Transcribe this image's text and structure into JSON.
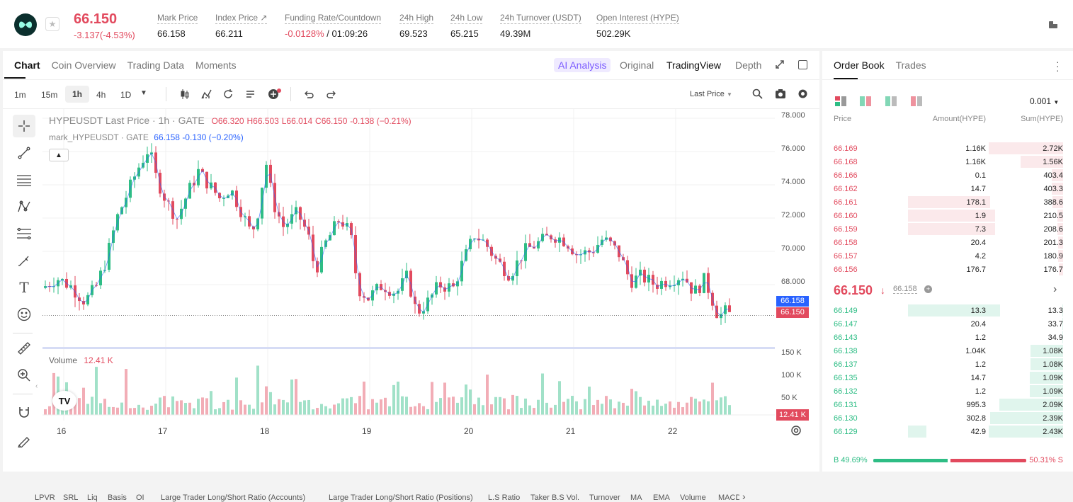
{
  "ticker": {
    "price": "66.150",
    "change": "-3.137(-4.53%)",
    "stats": [
      {
        "label": "Mark Price",
        "value": "66.158"
      },
      {
        "label": "Index Price ↗",
        "value": "66.211"
      },
      {
        "label": "Funding Rate/Countdown",
        "value_neg": "-0.0128%",
        "value": " / 01:09:26"
      },
      {
        "label": "24h High",
        "value": "69.523"
      },
      {
        "label": "24h Low",
        "value": "65.215"
      },
      {
        "label": "24h Turnover (USDT)",
        "value": "49.39M"
      },
      {
        "label": "Open Interest (HYPE)",
        "value": "502.29K"
      }
    ]
  },
  "chart_tabs": [
    "Chart",
    "Coin Overview",
    "Trading Data",
    "Moments"
  ],
  "view_tabs": {
    "analysis": "AI Analysis",
    "original": "Original",
    "tradingview": "TradingView",
    "depth": "Depth"
  },
  "intervals": [
    "1m",
    "15m",
    "1h",
    "4h",
    "1D"
  ],
  "selected_interval": "1h",
  "price_type": "Last Price",
  "legend": {
    "line1_name": "HYPEUSDT Last Price · 1h · GATE",
    "o": "O66.320",
    "h": "H66.503",
    "l": "L66.014",
    "c": "C66.150",
    "chg": "-0.138 (−0.21%)",
    "line2_name": "mark_HYPEUSDT · GATE",
    "line2_val": "66.158",
    "line2_chg": "-0.130 (−0.20%)"
  },
  "volume": {
    "label": "Volume",
    "value": "12.41 K"
  },
  "price_axis": [
    "78.000",
    "76.000",
    "74.000",
    "72.000",
    "70.000",
    "68.000"
  ],
  "mark_tag": "66.158",
  "last_tag": "66.150",
  "volume_axis": [
    "150 K",
    "100 K",
    "50 K"
  ],
  "volume_tag": "12.41 K",
  "date_axis": [
    "16",
    "17",
    "18",
    "19",
    "20",
    "21",
    "22"
  ],
  "indicators": [
    "LPVR",
    "SRL",
    "Liq",
    "Basis",
    "OI",
    "Large Trader Long/Short Ratio (Accounts)",
    "Large Trader Long/Short Ratio (Positions)",
    "L.S Ratio",
    "Taker B.S Vol.",
    "Turnover",
    "MA",
    "EMA",
    "Volume",
    "MACD"
  ],
  "orderbook": {
    "tabs": [
      "Order Book",
      "Trades"
    ],
    "precision": "0.001",
    "headers": {
      "price": "Price",
      "amount": "Amount(HYPE)",
      "sum": "Sum(HYPE)"
    },
    "asks": [
      {
        "price": "66.169",
        "amount": "1.16K",
        "sum": "2.72K",
        "depth": 1.0,
        "amt": 0
      },
      {
        "price": "66.168",
        "amount": "1.16K",
        "sum": "1.56K",
        "depth": 0.57,
        "amt": 0
      },
      {
        "price": "66.166",
        "amount": "0.1",
        "sum": "403.4",
        "depth": 0.15,
        "amt": 0
      },
      {
        "price": "66.162",
        "amount": "14.7",
        "sum": "403.3",
        "depth": 0.15,
        "amt": 0
      },
      {
        "price": "66.161",
        "amount": "178.1",
        "sum": "388.6",
        "depth": 0.14,
        "amt": 0.6
      },
      {
        "price": "66.160",
        "amount": "1.9",
        "sum": "210.5",
        "depth": 0.08,
        "amt": 0.6
      },
      {
        "price": "66.159",
        "amount": "7.3",
        "sum": "208.6",
        "depth": 0.08,
        "amt": 0.6
      },
      {
        "price": "66.158",
        "amount": "20.4",
        "sum": "201.3",
        "depth": 0.07,
        "amt": 0
      },
      {
        "price": "66.157",
        "amount": "4.2",
        "sum": "180.9",
        "depth": 0.07,
        "amt": 0
      },
      {
        "price": "66.156",
        "amount": "176.7",
        "sum": "176.7",
        "depth": 0.06,
        "amt": 0
      }
    ],
    "mid_price": "66.150",
    "mid_arrow": "↓",
    "mid_mark": "66.158",
    "bids": [
      {
        "price": "66.149",
        "amount": "13.3",
        "sum": "13.3",
        "depth": 0.01,
        "amt": 0.6
      },
      {
        "price": "66.147",
        "amount": "20.4",
        "sum": "33.7",
        "depth": 0.01,
        "amt": 0
      },
      {
        "price": "66.143",
        "amount": "1.2",
        "sum": "34.9",
        "depth": 0.01,
        "amt": 0
      },
      {
        "price": "66.138",
        "amount": "1.04K",
        "sum": "1.08K",
        "depth": 0.44,
        "amt": 0
      },
      {
        "price": "66.137",
        "amount": "1.2",
        "sum": "1.08K",
        "depth": 0.44,
        "amt": 0
      },
      {
        "price": "66.135",
        "amount": "14.7",
        "sum": "1.09K",
        "depth": 0.45,
        "amt": 0
      },
      {
        "price": "66.132",
        "amount": "1.2",
        "sum": "1.09K",
        "depth": 0.45,
        "amt": 0
      },
      {
        "price": "66.131",
        "amount": "995.3",
        "sum": "2.09K",
        "depth": 0.86,
        "amt": 0
      },
      {
        "price": "66.130",
        "amount": "302.8",
        "sum": "2.39K",
        "depth": 0.98,
        "amt": 0
      },
      {
        "price": "66.129",
        "amount": "42.9",
        "sum": "2.43K",
        "depth": 1.0,
        "amt": 0.6
      }
    ],
    "buy_ratio": "B 49.69%",
    "sell_ratio": "50.31% S",
    "buy_fraction": 0.4969
  },
  "colors": {
    "up": "#2ebd85",
    "down": "#e24a5e",
    "accent": "#7b5cff"
  }
}
